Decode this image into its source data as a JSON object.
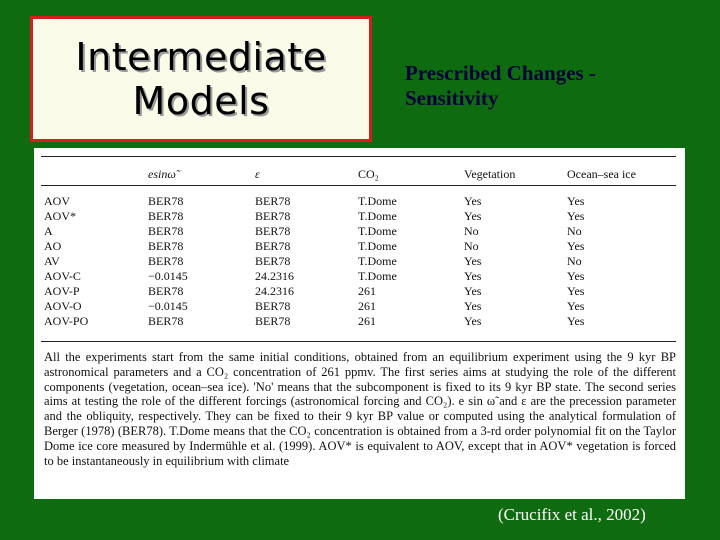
{
  "slide": {
    "title_lines": [
      "Intermediate",
      "Models"
    ],
    "subtitle_lines": [
      "Prescribed Changes -",
      "Sensitivity"
    ],
    "citation": "(Crucifix et al., 2002)"
  },
  "colors": {
    "background": "#0f6b0f",
    "title_box_fill": "#fbfbea",
    "title_box_border": "#d41e1e",
    "subtitle_text": "#00003a"
  },
  "table": {
    "headers": [
      "",
      "esinω̃",
      "ε",
      "CO₂",
      "Vegetation",
      "Ocean–sea ice"
    ],
    "rows": [
      [
        "AOV",
        "BER78",
        "BER78",
        "T.Dome",
        "Yes",
        "Yes"
      ],
      [
        "AOV*",
        "BER78",
        "BER78",
        "T.Dome",
        "Yes",
        "Yes"
      ],
      [
        "A",
        "BER78",
        "BER78",
        "T.Dome",
        "No",
        "No"
      ],
      [
        "AO",
        "BER78",
        "BER78",
        "T.Dome",
        "No",
        "Yes"
      ],
      [
        "AV",
        "BER78",
        "BER78",
        "T.Dome",
        "Yes",
        "No"
      ],
      [
        "AOV-C",
        "−0.0145",
        "24.2316",
        "T.Dome",
        "Yes",
        "Yes"
      ],
      [
        "AOV-P",
        "BER78",
        "24.2316",
        "261",
        "Yes",
        "Yes"
      ],
      [
        "AOV-O",
        "−0.0145",
        "BER78",
        "261",
        "Yes",
        "Yes"
      ],
      [
        "AOV-PO",
        "BER78",
        "BER78",
        "261",
        "Yes",
        "Yes"
      ]
    ],
    "caption": "All the experiments start from the same initial conditions, obtained from an equilibrium experiment using the 9 kyr BP astronomical parameters and a CO₂ concentration of 261 ppmv. The first series aims at studying the role of the different components (vegetation, ocean–sea ice). 'No' means that the subcomponent is fixed to its 9 kyr BP state. The second series aims at testing the role of the different forcings (astronomical forcing and CO₂). e sin ω̃ and ε are the precession parameter and the obliquity, respectively. They can be fixed to their 9 kyr BP value or computed using the analytical formulation of Berger (1978) (BER78). T.Dome means that the CO₂ concentration is obtained from a 3-rd order polynomial fit on the Taylor Dome ice core measured by Indermühle et al. (1999). AOV* is equivalent to AOV, except that in AOV* vegetation is forced to be instantaneously in equilibrium with climate"
  }
}
